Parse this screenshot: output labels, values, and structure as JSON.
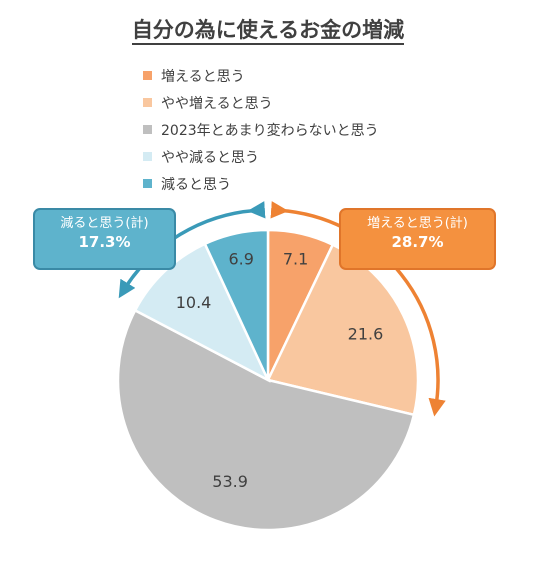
{
  "title": "自分の為に使えるお金の増減",
  "chart_data": {
    "type": "pie",
    "categories": [
      "増えると思う",
      "やや増えると思う",
      "2023年とあまり変わらないと思う",
      "やや減ると思う",
      "減ると思う"
    ],
    "values": [
      7.1,
      21.6,
      53.9,
      10.4,
      6.9
    ],
    "colors": [
      "#f7a26a",
      "#f9c79f",
      "#bfbfbf",
      "#d4ebf3",
      "#5eb3cc"
    ],
    "legend_position": "top"
  },
  "callouts": {
    "increase": {
      "label": "増えると思う(計)",
      "value": "28.7%",
      "color": "#f4913f",
      "arrow_color": "#ee8233"
    },
    "decrease": {
      "label": "減ると思う(計)",
      "value": "17.3%",
      "color": "#5eb3cc",
      "arrow_color": "#3a9ab8"
    }
  }
}
